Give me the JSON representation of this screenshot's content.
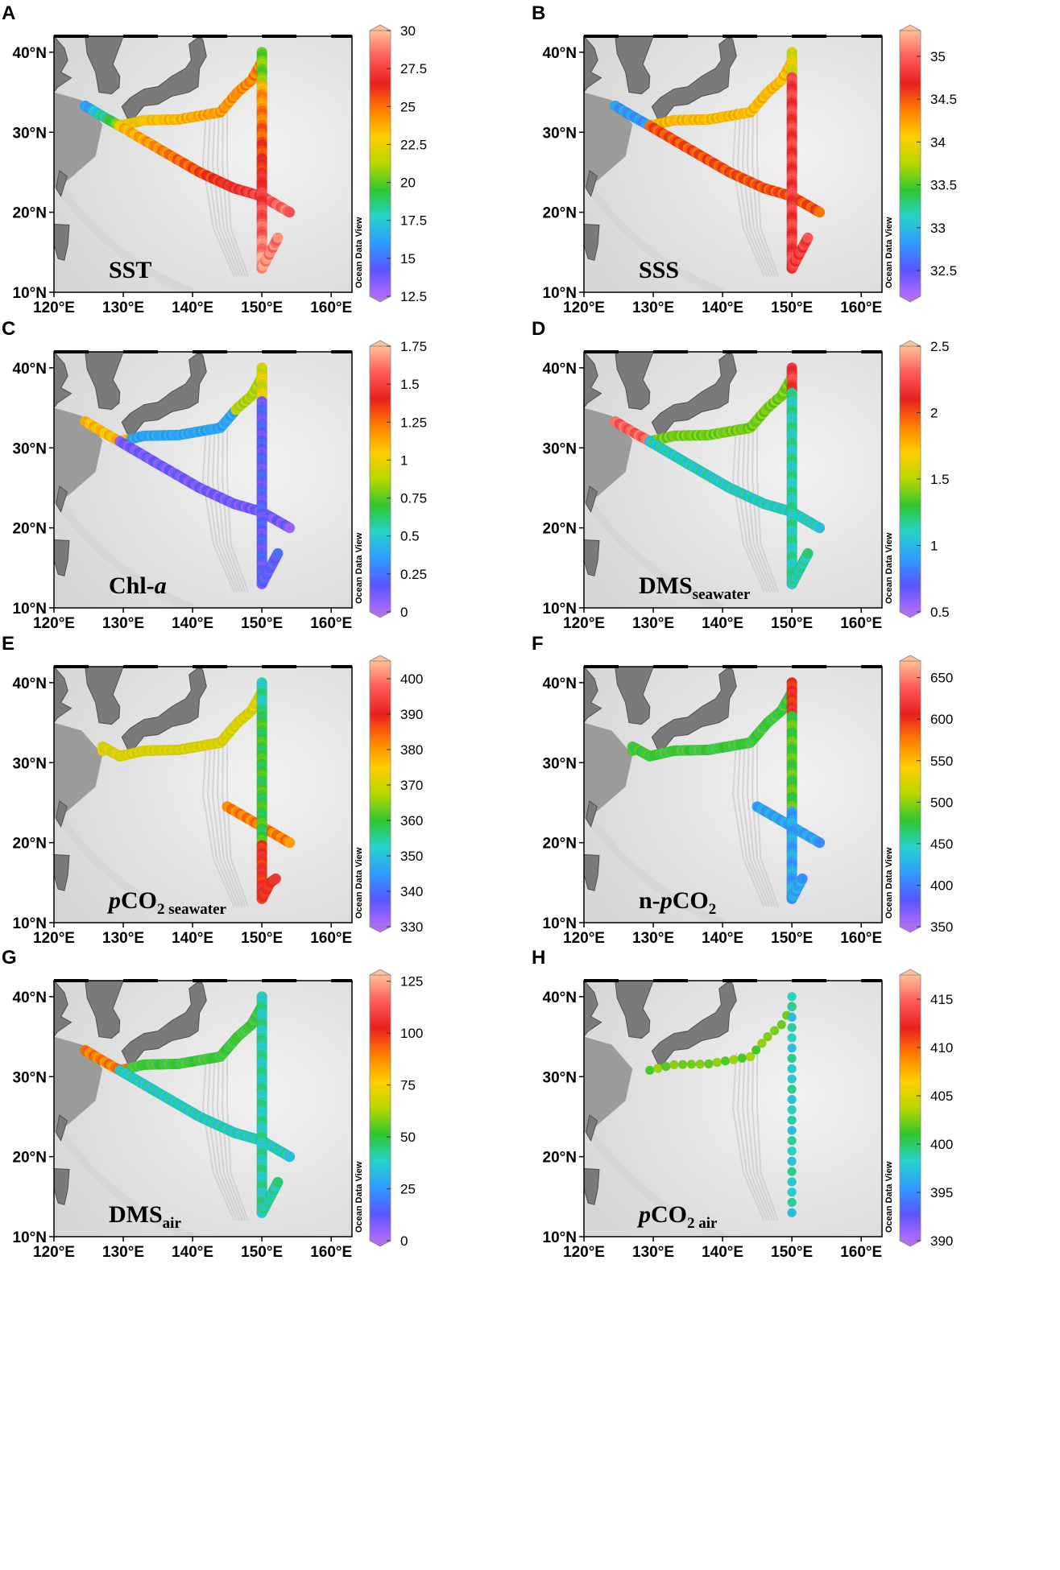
{
  "figure": {
    "x_ticks": [
      "120°E",
      "130°E",
      "140°E",
      "150°E",
      "160°E"
    ],
    "y_ticks": [
      "10°N",
      "20°N",
      "30°N",
      "40°N"
    ],
    "watermark": "Ocean Data View"
  },
  "panels": [
    {
      "label": "A",
      "var_main": "SST",
      "var_sub": "",
      "var_prefix_italic": "",
      "scale": {
        "min": 12.5,
        "max": 30,
        "ticks": [
          "30",
          "27.5",
          "25",
          "22.5",
          "20",
          "17.5",
          "15",
          "12.5"
        ]
      }
    },
    {
      "label": "B",
      "var_main": "SSS",
      "var_sub": "",
      "var_prefix_italic": "",
      "scale": {
        "min": 32.2,
        "max": 35.3,
        "ticks": [
          "35",
          "34.5",
          "34",
          "33.5",
          "33",
          "32.5"
        ]
      }
    },
    {
      "label": "C",
      "var_main": "Chl-",
      "var_sub": "",
      "var_suffix_italic": "a",
      "scale": {
        "min": 0,
        "max": 1.75,
        "ticks": [
          "1.75",
          "1.5",
          "1.25",
          "1",
          "0.75",
          "0.5",
          "0.25",
          "0"
        ]
      }
    },
    {
      "label": "D",
      "var_main": "DMS",
      "var_sub": "seawater",
      "var_prefix_italic": "",
      "scale": {
        "min": 0.5,
        "max": 2.5,
        "ticks": [
          "2.5",
          "2",
          "1.5",
          "1",
          "0.5"
        ]
      }
    },
    {
      "label": "E",
      "var_main": "CO",
      "var_sub": "2 seawater",
      "var_prefix_italic": "p",
      "scale": {
        "min": 330,
        "max": 405,
        "ticks": [
          "400",
          "390",
          "380",
          "370",
          "360",
          "350",
          "340",
          "330"
        ]
      }
    },
    {
      "label": "F",
      "var_main": "CO",
      "var_sub": "2",
      "var_prefix": "n-",
      "var_prefix_italic": "p",
      "scale": {
        "min": 350,
        "max": 670,
        "ticks": [
          "650",
          "600",
          "550",
          "500",
          "450",
          "400",
          "350"
        ]
      }
    },
    {
      "label": "G",
      "var_main": "DMS",
      "var_sub": "air",
      "var_prefix_italic": "",
      "scale": {
        "min": 0,
        "max": 128,
        "ticks": [
          "125",
          "100",
          "75",
          "50",
          "25",
          "0"
        ]
      }
    },
    {
      "label": "H",
      "var_main": "CO",
      "var_sub": "2 air",
      "var_prefix_italic": "p",
      "scale": {
        "min": 390,
        "max": 417.5,
        "ticks": [
          "415",
          "410",
          "405",
          "400",
          "395",
          "390"
        ]
      }
    }
  ],
  "colors": {
    "land": "#7a7a7a",
    "ocean": "#e3e3e3",
    "ramp": [
      "#b36bff",
      "#5a55ff",
      "#2f9bff",
      "#25d3c9",
      "#2fc62f",
      "#b8d700",
      "#ffce00",
      "#ff8000",
      "#e8201e",
      "#ff5a5a",
      "#ffc095"
    ]
  }
}
